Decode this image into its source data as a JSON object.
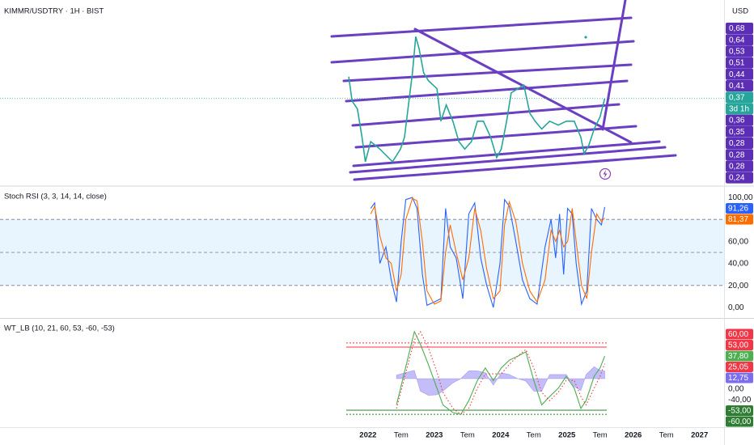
{
  "chart_data": [
    {
      "type": "line",
      "title": "KIMMR/USDTRY · 1H · BIST",
      "unit": "USD",
      "log": true,
      "xlim": [
        2016.45,
        2027.37
      ],
      "ylim": [
        0.229,
        0.627
      ],
      "price_badges": [
        "0,68",
        "0,64",
        "0,53",
        "0,51",
        "0,44",
        "0,41",
        "0,36",
        "0,35",
        "0,28",
        "0,28",
        "0,28",
        "0,24"
      ],
      "countdown": "3d 1h",
      "x": [
        2021.71,
        2021.76,
        2021.84,
        2021.91,
        2021.96,
        2022.04,
        2022.18,
        2022.37,
        2022.49,
        2022.55,
        2022.61,
        2022.67,
        2022.72,
        2022.77,
        2022.84,
        2022.91,
        2023.04,
        2023.1,
        2023.18,
        2023.28,
        2023.37,
        2023.46,
        2023.56,
        2023.65,
        2023.74,
        2023.85,
        2023.94,
        2024.01,
        2024.09,
        2024.16,
        2024.26,
        2024.35,
        2024.44,
        2024.52,
        2024.62,
        2024.74,
        2024.87,
        2024.99,
        2025.11,
        2025.21,
        2025.26,
        2025.33,
        2025.41,
        2025.5,
        2025.57
      ],
      "series": [
        {
          "color": "#26a69a",
          "last_label": "0,37",
          "values": [
            0.418,
            0.365,
            0.349,
            0.298,
            0.26,
            0.291,
            0.279,
            0.26,
            0.279,
            0.298,
            0.357,
            0.427,
            0.523,
            0.489,
            0.427,
            0.409,
            0.391,
            0.326,
            0.357,
            0.326,
            0.291,
            0.279,
            0.291,
            0.326,
            0.326,
            0.298,
            0.266,
            0.279,
            0.326,
            0.382,
            0.391,
            0.399,
            0.341,
            0.326,
            0.312,
            0.326,
            0.319,
            0.326,
            0.326,
            0.298,
            0.272,
            0.285,
            0.312,
            0.334,
            0.37
          ]
        }
      ]
    },
    {
      "type": "line",
      "title": "Stoch RSI (3, 3, 14, 14, close)",
      "xlim": [
        2016.45,
        2027.37
      ],
      "ylim": [
        -8.8,
        108.8
      ],
      "yticks": [
        {
          "value": 100,
          "label": "100,00"
        },
        {
          "value": 60,
          "label": "60,00"
        },
        {
          "value": 40,
          "label": "40,00"
        },
        {
          "value": 20,
          "label": "20,00"
        },
        {
          "value": 0,
          "label": "0,00"
        }
      ],
      "bands": [
        80,
        50,
        20
      ],
      "x": [
        2022.04,
        2022.1,
        2022.18,
        2022.27,
        2022.35,
        2022.43,
        2022.5,
        2022.57,
        2022.67,
        2022.74,
        2022.82,
        2022.89,
        2023.0,
        2023.1,
        2023.17,
        2023.24,
        2023.33,
        2023.43,
        2023.52,
        2023.61,
        2023.7,
        2023.79,
        2023.89,
        2023.99,
        2024.06,
        2024.13,
        2024.23,
        2024.33,
        2024.44,
        2024.55,
        2024.67,
        2024.76,
        2024.83,
        2024.89,
        2024.95,
        2025.01,
        2025.08,
        2025.14,
        2025.22,
        2025.3,
        2025.37,
        2025.45,
        2025.52,
        2025.57
      ],
      "series": [
        {
          "color": "#2962ff",
          "last_label": "91,26",
          "values": [
            90,
            95,
            40,
            55,
            25,
            5,
            60,
            98,
            100,
            90,
            30,
            2,
            5,
            8,
            90,
            55,
            45,
            8,
            85,
            95,
            45,
            20,
            0,
            40,
            98,
            92,
            60,
            25,
            8,
            3,
            55,
            80,
            45,
            85,
            30,
            90,
            85,
            40,
            3,
            15,
            90,
            80,
            75,
            91.26
          ]
        },
        {
          "color": "#ff6d00",
          "last_label": "81,37",
          "values": [
            85,
            92,
            65,
            45,
            40,
            15,
            30,
            80,
            99,
            97,
            60,
            15,
            3,
            6,
            50,
            75,
            50,
            25,
            45,
            90,
            70,
            35,
            8,
            15,
            75,
            96,
            78,
            40,
            15,
            5,
            25,
            70,
            60,
            70,
            55,
            60,
            90,
            60,
            20,
            8,
            50,
            85,
            78,
            81.37
          ]
        }
      ]
    },
    {
      "type": "line",
      "title": "WT_LB (10, 21, 60, 53, -60, -53)",
      "xlim": [
        2016.45,
        2027.37
      ],
      "ylim": [
        -81.6,
        99.3
      ],
      "yticks": [
        {
          "value": 0,
          "label": "0,00"
        },
        {
          "value": -40,
          "label": "-40,00"
        }
      ],
      "bands": [
        {
          "value": 60,
          "label": "60,00",
          "color": "#f23645",
          "dash": true
        },
        {
          "value": 53,
          "label": "53,00",
          "color": "#f23645",
          "dash": false
        },
        {
          "value": -53,
          "label": "-53,00",
          "color": "#2e7d32",
          "dash": false
        },
        {
          "value": -60,
          "label": "-60,00",
          "color": "#2e7d32",
          "dash": true
        }
      ],
      "xticks": [
        2022,
        {
          "value": 2022.5,
          "label": "Tem"
        },
        2023,
        {
          "value": 2023.5,
          "label": "Tem"
        },
        2024,
        {
          "value": 2024.5,
          "label": "Tem"
        },
        2025,
        {
          "value": 2025.5,
          "label": "Tem"
        },
        2026,
        {
          "value": 2026.5,
          "label": "Tem"
        },
        2027
      ],
      "x": [
        2022.43,
        2022.7,
        2022.79,
        2022.91,
        2023.04,
        2023.13,
        2023.28,
        2023.4,
        2023.52,
        2023.65,
        2023.77,
        2023.89,
        2024.01,
        2024.13,
        2024.26,
        2024.38,
        2024.5,
        2024.62,
        2024.74,
        2024.87,
        2024.99,
        2025.11,
        2025.21,
        2025.29,
        2025.41,
        2025.5,
        2025.57
      ],
      "series": [
        {
          "color": "#7b6cf0",
          "style": "area",
          "last_label": "12,75",
          "values": [
            6,
            14,
            -21,
            -28,
            -27,
            -21,
            -7,
            0,
            13,
            13,
            10,
            -11,
            10,
            7,
            0,
            -4,
            -21,
            -21,
            7,
            7,
            7,
            -13,
            -20,
            7,
            20,
            14,
            12.75
          ]
        },
        {
          "color": "#4caf50",
          "last_label": "37,80",
          "values": [
            -44,
            79,
            58,
            24,
            -16,
            -44,
            -57,
            -60,
            -37,
            -3,
            18,
            -3,
            18,
            31,
            38,
            45,
            -3,
            -44,
            -30,
            -16,
            4,
            -16,
            -50,
            -37,
            4,
            18,
            37.8
          ]
        },
        {
          "color": "#f23645",
          "dash": true,
          "last_label": "25,05",
          "values": [
            -50,
            65,
            79,
            52,
            11,
            -23,
            -50,
            -60,
            -50,
            -16,
            8,
            8,
            8,
            24,
            38,
            49,
            18,
            -23,
            -37,
            -23,
            -3,
            -3,
            -30,
            -44,
            -16,
            4,
            25.05
          ]
        }
      ]
    }
  ]
}
